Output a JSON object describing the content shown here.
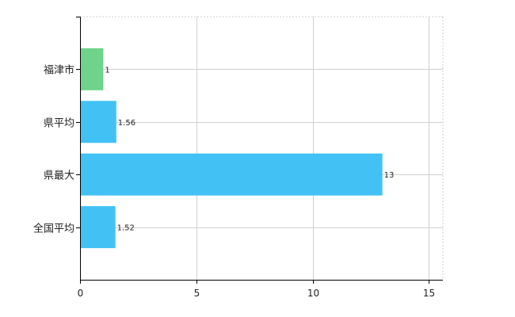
{
  "chart_data": {
    "type": "bar",
    "orientation": "horizontal",
    "categories": [
      "福津市",
      "県平均",
      "県最大",
      "全国平均"
    ],
    "values": [
      1,
      1.56,
      13,
      1.52
    ],
    "value_labels": [
      "1",
      "1.56",
      "13",
      "1.52"
    ],
    "xlim": [
      0,
      15.6
    ],
    "xticks": [
      0,
      5,
      10,
      15
    ],
    "xtick_labels": [
      "0",
      "5",
      "10",
      "15"
    ],
    "grid": true,
    "title": "",
    "xlabel": "",
    "ylabel": "",
    "colors": {
      "highlight": "#6fd38a",
      "default": "#42c1f4",
      "grid": "#d0d0d0",
      "axis": "#000000"
    },
    "highlight_index": 0
  }
}
